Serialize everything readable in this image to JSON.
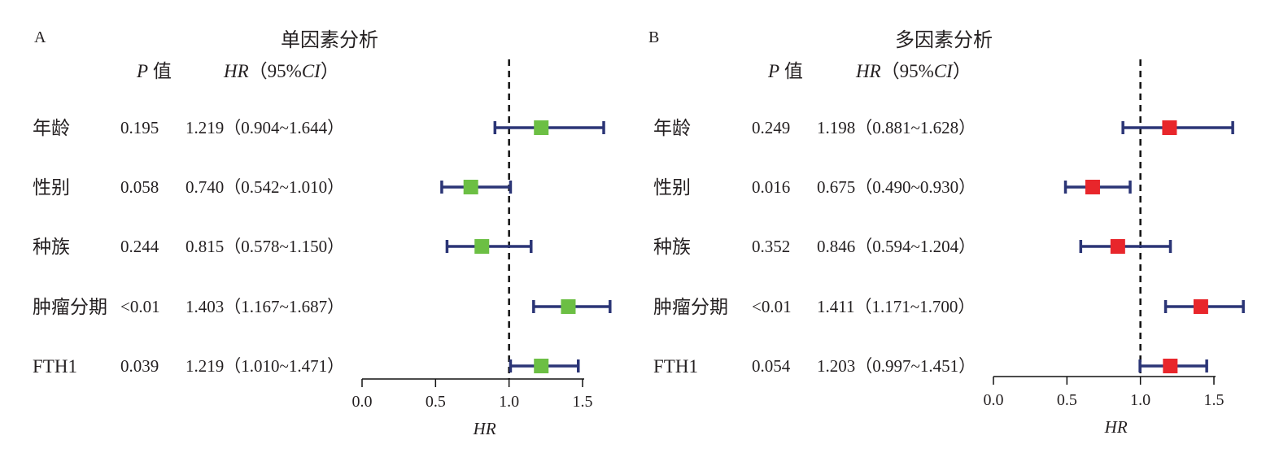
{
  "chart_data": [
    {
      "type": "forest",
      "panel_label": "A",
      "title": "单因素分析",
      "column_headers": {
        "p_italic": "P",
        "p_suffix": " 值",
        "hr_italic": "HR",
        "hr_suffix": "（95%",
        "ci_italic": "CI",
        "ci_close": "）"
      },
      "rows": [
        {
          "label": "年龄",
          "p": "0.195",
          "hr_text": "1.219（0.904~1.644）",
          "hr": 1.219,
          "lower": 0.904,
          "upper": 1.644
        },
        {
          "label": "性别",
          "p": "0.058",
          "hr_text": "0.740（0.542~1.010）",
          "hr": 0.74,
          "lower": 0.542,
          "upper": 1.01
        },
        {
          "label": "种族",
          "p": "0.244",
          "hr_text": "0.815（0.578~1.150）",
          "hr": 0.815,
          "lower": 0.578,
          "upper": 1.15
        },
        {
          "label": "肿瘤分期",
          "p": "<0.01",
          "hr_text": "1.403（1.167~1.687）",
          "hr": 1.403,
          "lower": 1.167,
          "upper": 1.687
        },
        {
          "label": "FTH1",
          "p": "0.039",
          "hr_text": "1.219（1.010~1.471）",
          "hr": 1.219,
          "lower": 1.01,
          "upper": 1.471
        }
      ],
      "x_ticks": [
        0.0,
        0.5,
        1.0,
        1.5
      ],
      "x_tick_labels": [
        "0.0",
        "0.5",
        "1.0",
        "1.5"
      ],
      "xlim": [
        0,
        1.6
      ],
      "reference_line": 1.0,
      "xlabel": "HR",
      "marker_color": "#6cbf44",
      "ci_color": "#2b3576"
    },
    {
      "type": "forest",
      "panel_label": "B",
      "title": "多因素分析",
      "column_headers": {
        "p_italic": "P",
        "p_suffix": " 值",
        "hr_italic": "HR",
        "hr_suffix": "（95%",
        "ci_italic": "CI",
        "ci_close": "）"
      },
      "rows": [
        {
          "label": "年龄",
          "p": "0.249",
          "hr_text": "1.198（0.881~1.628）",
          "hr": 1.198,
          "lower": 0.881,
          "upper": 1.628
        },
        {
          "label": "性别",
          "p": "0.016",
          "hr_text": "0.675（0.490~0.930）",
          "hr": 0.675,
          "lower": 0.49,
          "upper": 0.93
        },
        {
          "label": "种族",
          "p": "0.352",
          "hr_text": "0.846（0.594~1.204）",
          "hr": 0.846,
          "lower": 0.594,
          "upper": 1.204
        },
        {
          "label": "肿瘤分期",
          "p": "<0.01",
          "hr_text": "1.411（1.171~1.700）",
          "hr": 1.411,
          "lower": 1.171,
          "upper": 1.7
        },
        {
          "label": "FTH1",
          "p": "0.054",
          "hr_text": "1.203（0.997~1.451）",
          "hr": 1.203,
          "lower": 0.997,
          "upper": 1.451
        }
      ],
      "x_ticks": [
        0.0,
        0.5,
        1.0,
        1.5
      ],
      "x_tick_labels": [
        "0.0",
        "0.5",
        "1.0",
        "1.5"
      ],
      "xlim": [
        0,
        1.6
      ],
      "reference_line": 1.0,
      "xlabel": "HR",
      "marker_color": "#e8262b",
      "ci_color": "#2b3576"
    }
  ]
}
